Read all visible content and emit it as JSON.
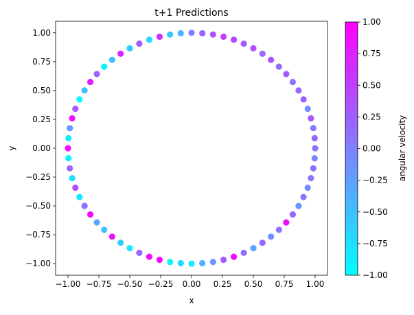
{
  "chart_data": {
    "type": "scatter",
    "title": "t+1 Predictions",
    "xlabel": "x",
    "ylabel": "y",
    "xlim": [
      -1.1,
      1.1
    ],
    "ylim": [
      -1.1,
      1.1
    ],
    "xticks": [
      "−1.00",
      "−0.75",
      "−0.50",
      "−0.25",
      "0.00",
      "0.25",
      "0.50",
      "0.75",
      "1.00"
    ],
    "yticks": [
      "−1.00",
      "−0.75",
      "−0.50",
      "−0.25",
      "0.00",
      "0.25",
      "0.50",
      "0.75",
      "1.00"
    ],
    "grid": false,
    "colormap": "cool",
    "colormap_colors": [
      "#00ffff",
      "#ff00ff"
    ],
    "colorbar": {
      "label": "angular velocity",
      "range": [
        -1.0,
        1.0
      ],
      "ticks": [
        "−1.00",
        "−0.75",
        "−0.50",
        "−0.25",
        "0.00",
        "0.25",
        "0.50",
        "0.75",
        "1.00"
      ]
    },
    "series": [
      {
        "points": [
          {
            "x": 1.0,
            "y": 0.0,
            "c": 0.1
          },
          {
            "x": 0.996,
            "y": 0.087,
            "c": 0.2
          },
          {
            "x": 0.985,
            "y": 0.174,
            "c": 0.05
          },
          {
            "x": 0.966,
            "y": 0.259,
            "c": 0.3
          },
          {
            "x": 0.94,
            "y": 0.342,
            "c": -0.1
          },
          {
            "x": 0.906,
            "y": 0.423,
            "c": 0.25
          },
          {
            "x": 0.866,
            "y": 0.5,
            "c": 0.2
          },
          {
            "x": 0.819,
            "y": 0.574,
            "c": 0.1
          },
          {
            "x": 0.766,
            "y": 0.643,
            "c": 0.3
          },
          {
            "x": 0.707,
            "y": 0.707,
            "c": 0.15
          },
          {
            "x": 0.643,
            "y": 0.766,
            "c": 0.35
          },
          {
            "x": 0.574,
            "y": 0.819,
            "c": 0.2
          },
          {
            "x": 0.5,
            "y": 0.866,
            "c": 0.4
          },
          {
            "x": 0.423,
            "y": 0.906,
            "c": 0.3
          },
          {
            "x": 0.342,
            "y": 0.94,
            "c": 0.45
          },
          {
            "x": 0.259,
            "y": 0.966,
            "c": 0.5
          },
          {
            "x": 0.174,
            "y": 0.985,
            "c": 0.35
          },
          {
            "x": 0.087,
            "y": 0.996,
            "c": 0.2
          },
          {
            "x": 0.0,
            "y": 1.0,
            "c": 0.0
          },
          {
            "x": -0.087,
            "y": 0.996,
            "c": -0.4
          },
          {
            "x": -0.174,
            "y": 0.985,
            "c": -0.55
          },
          {
            "x": -0.259,
            "y": 0.966,
            "c": 0.6
          },
          {
            "x": -0.342,
            "y": 0.94,
            "c": -0.7
          },
          {
            "x": -0.423,
            "y": 0.906,
            "c": 0.3
          },
          {
            "x": -0.5,
            "y": 0.866,
            "c": -0.6
          },
          {
            "x": -0.574,
            "y": 0.819,
            "c": 0.7
          },
          {
            "x": -0.643,
            "y": 0.766,
            "c": -0.5
          },
          {
            "x": -0.707,
            "y": 0.707,
            "c": -0.9
          },
          {
            "x": -0.766,
            "y": 0.643,
            "c": 0.2
          },
          {
            "x": -0.819,
            "y": 0.574,
            "c": 0.8
          },
          {
            "x": -0.866,
            "y": 0.5,
            "c": -0.5
          },
          {
            "x": -0.906,
            "y": 0.423,
            "c": -0.95
          },
          {
            "x": -0.94,
            "y": 0.342,
            "c": 0.3
          },
          {
            "x": -0.966,
            "y": 0.259,
            "c": 0.85
          },
          {
            "x": -0.985,
            "y": 0.174,
            "c": -0.2
          },
          {
            "x": -0.996,
            "y": 0.087,
            "c": -0.85
          },
          {
            "x": -1.0,
            "y": 0.0,
            "c": 0.9
          },
          {
            "x": -0.996,
            "y": -0.087,
            "c": -0.9
          },
          {
            "x": -0.985,
            "y": -0.174,
            "c": 0.2
          },
          {
            "x": -0.966,
            "y": -0.259,
            "c": -0.7
          },
          {
            "x": -0.94,
            "y": -0.342,
            "c": 0.4
          },
          {
            "x": -0.906,
            "y": -0.423,
            "c": -0.8
          },
          {
            "x": -0.866,
            "y": -0.5,
            "c": 0.1
          },
          {
            "x": -0.819,
            "y": -0.574,
            "c": 0.95
          },
          {
            "x": -0.766,
            "y": -0.643,
            "c": -0.3
          },
          {
            "x": -0.707,
            "y": -0.707,
            "c": -0.5
          },
          {
            "x": -0.643,
            "y": -0.766,
            "c": 0.85
          },
          {
            "x": -0.574,
            "y": -0.819,
            "c": -0.6
          },
          {
            "x": -0.5,
            "y": -0.866,
            "c": -0.8
          },
          {
            "x": -0.423,
            "y": -0.906,
            "c": 0.2
          },
          {
            "x": -0.342,
            "y": -0.94,
            "c": 0.9
          },
          {
            "x": -0.259,
            "y": -0.966,
            "c": 0.95
          },
          {
            "x": -0.174,
            "y": -0.985,
            "c": -0.9
          },
          {
            "x": -0.087,
            "y": -0.996,
            "c": -0.7
          },
          {
            "x": 0.0,
            "y": -1.0,
            "c": -0.85
          },
          {
            "x": 0.087,
            "y": -0.996,
            "c": -0.4
          },
          {
            "x": 0.174,
            "y": -0.985,
            "c": -0.2
          },
          {
            "x": 0.259,
            "y": -0.966,
            "c": 0.3
          },
          {
            "x": 0.342,
            "y": -0.94,
            "c": 0.9
          },
          {
            "x": 0.423,
            "y": -0.906,
            "c": 0.1
          },
          {
            "x": 0.5,
            "y": -0.866,
            "c": -0.3
          },
          {
            "x": 0.574,
            "y": -0.819,
            "c": 0.2
          },
          {
            "x": 0.643,
            "y": -0.766,
            "c": -0.1
          },
          {
            "x": 0.707,
            "y": -0.707,
            "c": 0.1
          },
          {
            "x": 0.766,
            "y": -0.643,
            "c": 0.9
          },
          {
            "x": 0.819,
            "y": -0.574,
            "c": 0.2
          },
          {
            "x": 0.866,
            "y": -0.5,
            "c": -0.2
          },
          {
            "x": 0.906,
            "y": -0.423,
            "c": 0.1
          },
          {
            "x": 0.94,
            "y": -0.342,
            "c": -0.1
          },
          {
            "x": 0.966,
            "y": -0.259,
            "c": 0.05
          },
          {
            "x": 0.985,
            "y": -0.174,
            "c": 0.1
          },
          {
            "x": 0.996,
            "y": -0.087,
            "c": -0.05
          }
        ]
      }
    ]
  }
}
